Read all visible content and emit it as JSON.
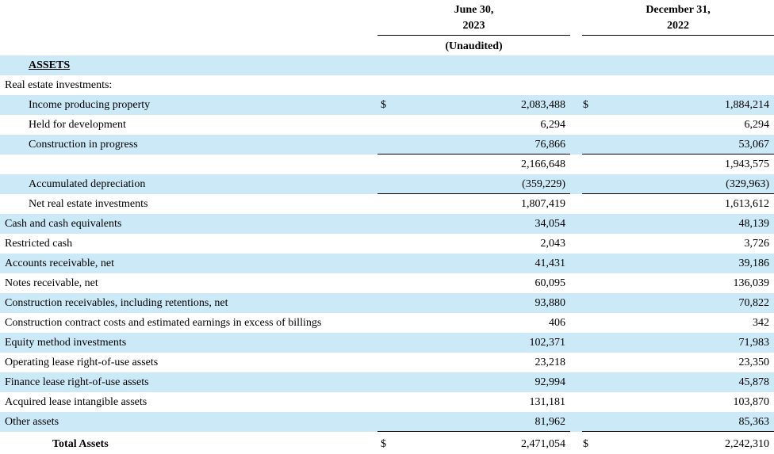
{
  "header": {
    "col1": {
      "line1": "June 30,",
      "line2": "2023",
      "note": "(Unaudited)"
    },
    "col2": {
      "line1": "December 31,",
      "line2": "2022"
    }
  },
  "rows": [
    {
      "label": "ASSETS",
      "style": "section",
      "shade": true
    },
    {
      "label": "Real estate investments:",
      "shade": false
    },
    {
      "label": "Income producing property",
      "indent": true,
      "dollar": "$",
      "v1": "2,083,488",
      "v2": "1,884,214",
      "shade": true
    },
    {
      "label": "Held for development",
      "indent": true,
      "v1": "6,294",
      "v2": "6,294",
      "shade": false
    },
    {
      "label": "Construction in progress",
      "indent": true,
      "v1": "76,866",
      "v2": "53,067",
      "shade": true,
      "rule_below": true
    },
    {
      "label": "",
      "v1": "2,166,648",
      "v2": "1,943,575",
      "shade": false
    },
    {
      "label": "Accumulated depreciation",
      "indent": true,
      "v1": "(359,229)",
      "v2": "(329,963)",
      "shade": true,
      "rule_below": true
    },
    {
      "label": "Net real estate investments",
      "indent": true,
      "v1": "1,807,419",
      "v2": "1,613,612",
      "shade": false
    },
    {
      "label": "Cash and cash equivalents",
      "v1": "34,054",
      "v2": "48,139",
      "shade": true
    },
    {
      "label": "Restricted cash",
      "v1": "2,043",
      "v2": "3,726",
      "shade": false
    },
    {
      "label": "Accounts receivable, net",
      "v1": "41,431",
      "v2": "39,186",
      "shade": true
    },
    {
      "label": "Notes receivable, net",
      "v1": "60,095",
      "v2": "136,039",
      "shade": false
    },
    {
      "label": "Construction receivables, including retentions, net",
      "v1": "93,880",
      "v2": "70,822",
      "shade": true
    },
    {
      "label": "Construction contract costs and estimated earnings in excess of billings",
      "v1": "406",
      "v2": "342",
      "shade": false
    },
    {
      "label": "Equity method investments",
      "v1": "102,371",
      "v2": "71,983",
      "shade": true
    },
    {
      "label": "Operating lease right-of-use assets",
      "v1": "23,218",
      "v2": "23,350",
      "shade": false
    },
    {
      "label": "Finance lease right-of-use assets",
      "v1": "92,994",
      "v2": "45,878",
      "shade": true
    },
    {
      "label": "Acquired lease intangible assets",
      "v1": "131,181",
      "v2": "103,870",
      "shade": false
    },
    {
      "label": "Other assets",
      "v1": "81,962",
      "v2": "85,363",
      "shade": true,
      "rule_below": true
    },
    {
      "label": "Total Assets",
      "style": "total",
      "dollar": "$",
      "v1": "2,471,054",
      "v2": "2,242,310",
      "shade": false
    }
  ]
}
